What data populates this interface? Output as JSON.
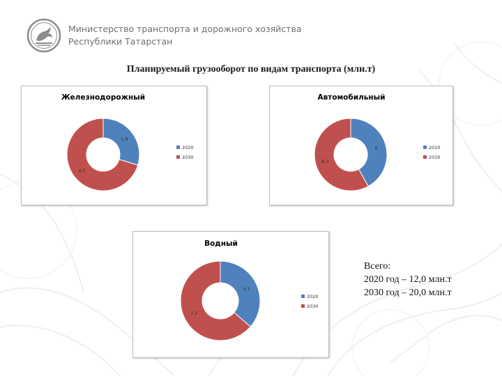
{
  "header": {
    "org_line1": "Министерство транспорта и дорожного хозяйства",
    "org_line2": "Республики Татарстан"
  },
  "slide_title": "Планируемый грузооборот по видам транспорта (млн.т)",
  "colors": {
    "series_2020": "#4f81bd",
    "series_2030": "#c0504d"
  },
  "icons": {
    "logo": "emblem-icon"
  },
  "chart_data": [
    {
      "type": "pie",
      "title": "Железнодорожный",
      "categories": [
        "2020",
        "2030"
      ],
      "values": [
        1.9,
        4.5
      ],
      "value_labels": [
        "1,9",
        "4,5"
      ],
      "donut": true,
      "legend": "right"
    },
    {
      "type": "pie",
      "title": "Автомобильный",
      "categories": [
        "2020",
        "2030"
      ],
      "values": [
        6,
        8.3
      ],
      "value_labels": [
        "6",
        "8,3"
      ],
      "donut": true,
      "legend": "right"
    },
    {
      "type": "pie",
      "title": "Водный",
      "categories": [
        "2020",
        "2030"
      ],
      "values": [
        4.1,
        7.2
      ],
      "value_labels": [
        "4,1",
        "7,2"
      ],
      "donut": true,
      "legend": "right"
    }
  ],
  "totals": {
    "heading": "Всего:",
    "line_2020": "2020 год – 12,0 млн.т",
    "line_2030": "2030 год – 20,0 млн.т"
  }
}
